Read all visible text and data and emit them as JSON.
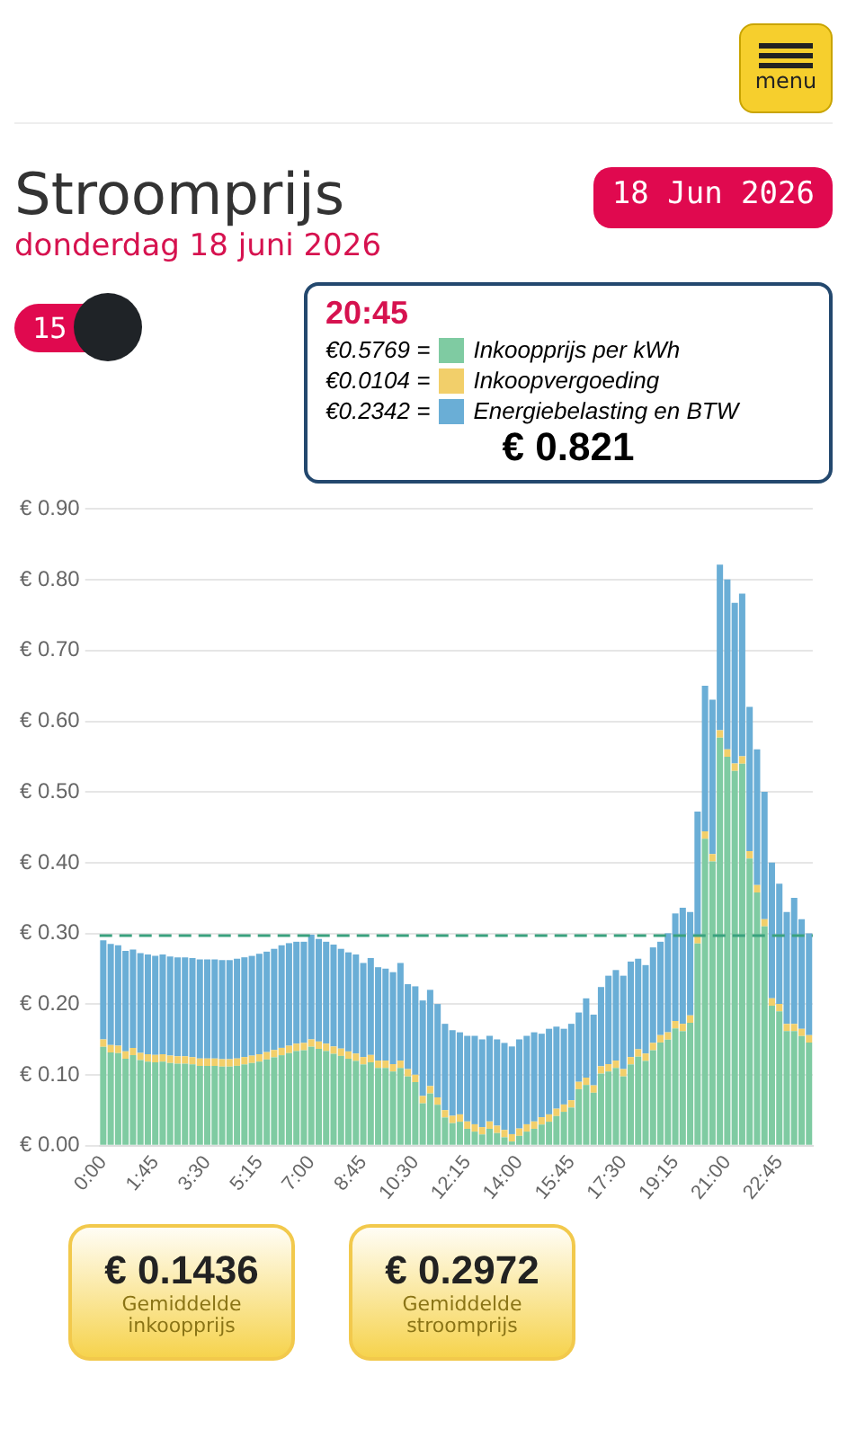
{
  "chart_data": {
    "type": "bar",
    "title": "Stroomprijs",
    "subtitle": "donderdag 18 juni 2026",
    "categories": [
      "0:00",
      null,
      null,
      null,
      null,
      null,
      null,
      "1:45",
      null,
      null,
      null,
      null,
      null,
      null,
      "3:30",
      null,
      null,
      null,
      null,
      null,
      null,
      "5:15",
      null,
      null,
      null,
      null,
      null,
      null,
      "7:00",
      null,
      null,
      null,
      null,
      null,
      null,
      "8:45",
      null,
      null,
      null,
      null,
      null,
      null,
      "10:30",
      null,
      null,
      null,
      null,
      null,
      null,
      "12:15",
      null,
      null,
      null,
      null,
      null,
      null,
      "14:00",
      null,
      null,
      null,
      null,
      null,
      null,
      "15:45",
      null,
      null,
      null,
      null,
      null,
      null,
      "17:30",
      null,
      null,
      null,
      null,
      null,
      null,
      "19:15",
      null,
      null,
      null,
      null,
      null,
      null,
      "21:00",
      null,
      null,
      null,
      null,
      null,
      null,
      "22:45",
      null,
      null,
      null,
      null
    ],
    "stacked": true,
    "series": [
      {
        "name": "Inkoopprijs per kWh",
        "color": "#7fcba2",
        "values": [
          0.14,
          0.132,
          0.131,
          0.123,
          0.128,
          0.121,
          0.119,
          0.118,
          0.119,
          0.117,
          0.116,
          0.116,
          0.115,
          0.113,
          0.113,
          0.113,
          0.112,
          0.112,
          0.113,
          0.115,
          0.117,
          0.119,
          0.122,
          0.125,
          0.128,
          0.131,
          0.134,
          0.135,
          0.14,
          0.137,
          0.134,
          0.13,
          0.127,
          0.123,
          0.12,
          0.115,
          0.118,
          0.11,
          0.11,
          0.105,
          0.11,
          0.098,
          0.09,
          0.06,
          0.074,
          0.058,
          0.04,
          0.032,
          0.034,
          0.024,
          0.02,
          0.016,
          0.024,
          0.018,
          0.012,
          0.006,
          0.014,
          0.02,
          0.024,
          0.03,
          0.034,
          0.042,
          0.048,
          0.054,
          0.08,
          0.086,
          0.075,
          0.102,
          0.105,
          0.11,
          0.098,
          0.115,
          0.126,
          0.12,
          0.135,
          0.146,
          0.15,
          0.166,
          0.162,
          0.174,
          0.286,
          0.434,
          0.402,
          0.5769,
          0.55,
          0.53,
          0.54,
          0.406,
          0.358,
          0.31,
          0.198,
          0.19,
          0.162,
          0.162,
          0.155,
          0.146
        ]
      },
      {
        "name": "Inkoopvergoeding",
        "color": "#f2cf6a",
        "values": [
          0.0104,
          0.0104,
          0.0104,
          0.0104,
          0.0104,
          0.0104,
          0.0104,
          0.0104,
          0.0104,
          0.0104,
          0.0104,
          0.0104,
          0.0104,
          0.0104,
          0.0104,
          0.0104,
          0.0104,
          0.0104,
          0.0104,
          0.0104,
          0.0104,
          0.0104,
          0.0104,
          0.0104,
          0.0104,
          0.0104,
          0.0104,
          0.0104,
          0.0104,
          0.0104,
          0.0104,
          0.0104,
          0.0104,
          0.0104,
          0.0104,
          0.0104,
          0.0104,
          0.0104,
          0.0104,
          0.0104,
          0.0104,
          0.0104,
          0.0104,
          0.0104,
          0.0104,
          0.0104,
          0.0104,
          0.0104,
          0.0104,
          0.0104,
          0.0104,
          0.0104,
          0.0104,
          0.0104,
          0.0104,
          0.0104,
          0.0104,
          0.0104,
          0.0104,
          0.0104,
          0.0104,
          0.0104,
          0.0104,
          0.0104,
          0.0104,
          0.0104,
          0.0104,
          0.0104,
          0.0104,
          0.0104,
          0.0104,
          0.0104,
          0.0104,
          0.0104,
          0.0104,
          0.0104,
          0.0104,
          0.0104,
          0.0104,
          0.0104,
          0.0104,
          0.0104,
          0.0104,
          0.0104,
          0.0104,
          0.0104,
          0.0104,
          0.0104,
          0.0104,
          0.0104,
          0.0104,
          0.0104,
          0.0104,
          0.0104,
          0.0104,
          0.0104
        ]
      },
      {
        "name": "Energiebelasting en BTW",
        "color": "#6aaed6",
        "values": [
          0.14,
          0.143,
          0.142,
          0.142,
          0.139,
          0.141,
          0.141,
          0.14,
          0.141,
          0.14,
          0.14,
          0.14,
          0.14,
          0.14,
          0.14,
          0.14,
          0.14,
          0.14,
          0.141,
          0.141,
          0.141,
          0.142,
          0.142,
          0.143,
          0.145,
          0.145,
          0.144,
          0.143,
          0.148,
          0.145,
          0.144,
          0.144,
          0.141,
          0.14,
          0.14,
          0.133,
          0.137,
          0.132,
          0.13,
          0.13,
          0.138,
          0.12,
          0.125,
          0.135,
          0.136,
          0.132,
          0.122,
          0.121,
          0.116,
          0.121,
          0.125,
          0.124,
          0.121,
          0.122,
          0.123,
          0.124,
          0.126,
          0.125,
          0.126,
          0.118,
          0.121,
          0.116,
          0.107,
          0.108,
          0.098,
          0.112,
          0.1,
          0.112,
          0.125,
          0.128,
          0.132,
          0.135,
          0.128,
          0.125,
          0.135,
          0.132,
          0.14,
          0.152,
          0.164,
          0.146,
          0.176,
          0.206,
          0.218,
          0.2342,
          0.24,
          0.227,
          0.23,
          0.204,
          0.192,
          0.18,
          0.192,
          0.17,
          0.158,
          0.178,
          0.155,
          0.144
        ]
      }
    ],
    "ylim": [
      0,
      0.9
    ],
    "yticks": [
      {
        "value": 0,
        "label": "€ 0.00"
      },
      {
        "value": 0.1,
        "label": "€ 0.10"
      },
      {
        "value": 0.2,
        "label": "€ 0.20"
      },
      {
        "value": 0.3,
        "label": "€ 0.30"
      },
      {
        "value": 0.4,
        "label": "€ 0.40"
      },
      {
        "value": 0.5,
        "label": "€ 0.50"
      },
      {
        "value": 0.6,
        "label": "€ 0.60"
      },
      {
        "value": 0.7,
        "label": "€ 0.70"
      },
      {
        "value": 0.8,
        "label": "€ 0.80"
      },
      {
        "value": 0.9,
        "label": "€ 0.90"
      }
    ],
    "grid": "y",
    "ref_lines": [
      {
        "axis": "y",
        "value": 0.2972,
        "color": "#3aa17e",
        "line_style": "dashed"
      }
    ],
    "legend": "top right",
    "legend_title": "20:45",
    "annotations": [
      "18 Jun 2026",
      "15",
      "menu",
      "€0.5769 =",
      "€0.0104 =",
      "€0.2342 =",
      "€ 0.821",
      "€ 0.1436",
      "Gemiddelde inkoopprijs",
      "€ 0.2972",
      "Gemiddelde stroomprijs"
    ]
  }
}
